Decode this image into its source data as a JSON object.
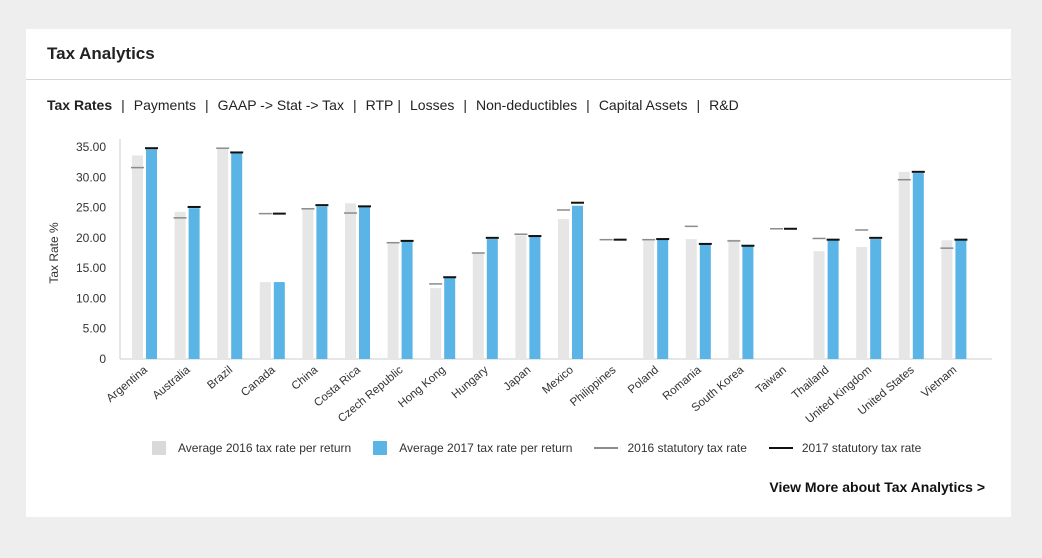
{
  "header": {
    "title": "Tax Analytics"
  },
  "tabs": [
    {
      "label": "Tax Rates"
    },
    {
      "label": "Payments"
    },
    {
      "label": "GAAP -> Stat -> Tax"
    },
    {
      "label": "RTP"
    },
    {
      "label": "Losses"
    },
    {
      "label": "Non-deductibles"
    },
    {
      "label": "Capital Assets"
    },
    {
      "label": "R&D"
    }
  ],
  "legend": {
    "avg2016": "Average 2016 tax rate per return",
    "avg2017": "Average 2017 tax rate per return",
    "stat2016": "2016 statutory tax rate",
    "stat2017": "2017 statutory tax rate"
  },
  "view_more": "View More about Tax Analytics >",
  "colors": {
    "avg2016": "#e6e6e6",
    "avg2017": "#5ab4e5",
    "stat2016": "#8c8c8c",
    "stat2017": "#111111",
    "axis": "#cccccc",
    "legend2016": "#d9d9d9"
  },
  "chart_data": {
    "type": "bar",
    "ylabel": "Tax Rate %",
    "ylim": [
      0,
      35
    ],
    "yticks": [
      "35.00",
      "30.00",
      "25.00",
      "20.00",
      "15.00",
      "10.00",
      "5.00",
      "0"
    ],
    "categories": [
      "Argentina",
      "Australia",
      "Brazil",
      "Canada",
      "China",
      "Costa Rica",
      "Czech Republic",
      "Hong Kong",
      "Hungary",
      "Japan",
      "Mexico",
      "Philippines",
      "Poland",
      "Romania",
      "South Korea",
      "Taiwan",
      "Thailand",
      "United Kingdom",
      "United States",
      "Vietnam"
    ],
    "series": [
      {
        "name": "Average 2016 tax rate per return",
        "kind": "bar",
        "values": [
          33.6,
          24.3,
          34.9,
          12.7,
          24.9,
          25.7,
          19.3,
          11.7,
          17.6,
          20.4,
          23.1,
          null,
          19.7,
          19.8,
          19.7,
          null,
          17.8,
          18.5,
          30.9,
          19.6
        ]
      },
      {
        "name": "Average 2017 tax rate per return",
        "kind": "bar",
        "values": [
          34.6,
          24.9,
          34.1,
          12.7,
          25.2,
          25.1,
          19.6,
          13.4,
          19.8,
          20.2,
          25.3,
          null,
          19.7,
          19.0,
          18.7,
          null,
          19.6,
          19.8,
          30.7,
          19.6
        ]
      },
      {
        "name": "2016 statutory tax rate",
        "kind": "marker",
        "values": [
          31.6,
          23.3,
          34.8,
          24.0,
          24.8,
          24.1,
          19.2,
          12.4,
          17.5,
          20.6,
          24.6,
          19.7,
          19.7,
          21.9,
          19.5,
          21.5,
          19.9,
          21.3,
          29.6,
          18.3
        ]
      },
      {
        "name": "2017 statutory tax rate",
        "kind": "marker",
        "values": [
          34.8,
          25.1,
          34.1,
          24.0,
          25.4,
          25.2,
          19.5,
          13.5,
          20.0,
          20.3,
          25.8,
          19.7,
          19.8,
          19.0,
          18.7,
          21.5,
          19.7,
          20.0,
          30.9,
          19.7
        ]
      }
    ]
  }
}
